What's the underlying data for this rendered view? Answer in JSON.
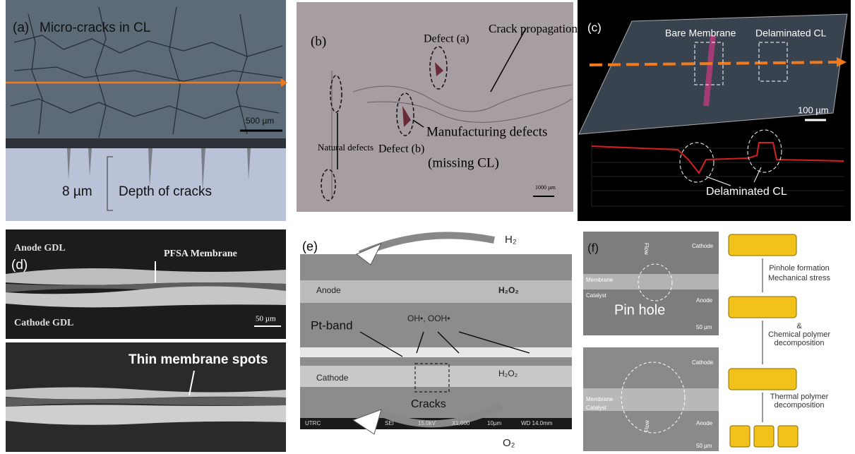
{
  "panels": {
    "a": {
      "label": "(a)",
      "title": "Micro-cracks in CL",
      "scale": "500 µm",
      "depth": "8 µm",
      "depth_label": "Depth of cracks"
    },
    "b": {
      "label": "(b)",
      "defect_a": "Defect (a)",
      "crack": "Crack propagation",
      "natural": "Natural defects",
      "defect_b": "Defect (b)",
      "manufacturing": "Manufacturing defects",
      "missing": "(missing CL)",
      "scale": "1000 µm"
    },
    "c": {
      "label": "(c)",
      "bare": "Bare Membrane",
      "delam_top": "Delaminated CL",
      "scale": "100 µm",
      "delam_bottom": "Delaminated CL"
    },
    "d": {
      "label": "(d)",
      "anode": "Anode GDL",
      "membrane": "PFSA Membrane",
      "cathode": "Cathode GDL",
      "scale": "50 µm",
      "thin": "Thin membrane spots"
    },
    "e": {
      "label": "(e)",
      "h2": "H₂",
      "anode": "Anode",
      "h2o2_top": "H₂O₂",
      "radicals": "OH•, OOH•",
      "ptband": "Pt-band",
      "cathode": "Cathode",
      "h2o2_bottom": "H₂O₂",
      "cracks": "Cracks",
      "o2": "O₂",
      "footer": [
        "UTRC",
        "SEI",
        "15.0kV",
        "X1,000",
        "10µm",
        "WD 14.0mm"
      ]
    },
    "f": {
      "label": "(f)",
      "top": {
        "cathode": "Cathode",
        "membrane": "Membrane",
        "catalyst": "Catalyst",
        "anode": "Anode",
        "pinhole": "Pin hole",
        "scale": "50 µm",
        "flow": "Flow"
      },
      "bottom": {
        "cathode": "Cathode",
        "membrane": "Membrane",
        "catalyst": "Catalyst",
        "anode": "Anode",
        "scale": "50 µm",
        "flow": "Flow"
      },
      "steps": [
        "Pinhole formation",
        "Mechanical stress",
        "&",
        "Chemical polymer",
        "decomposition",
        "Thermal polymer",
        "decomposition"
      ]
    }
  }
}
